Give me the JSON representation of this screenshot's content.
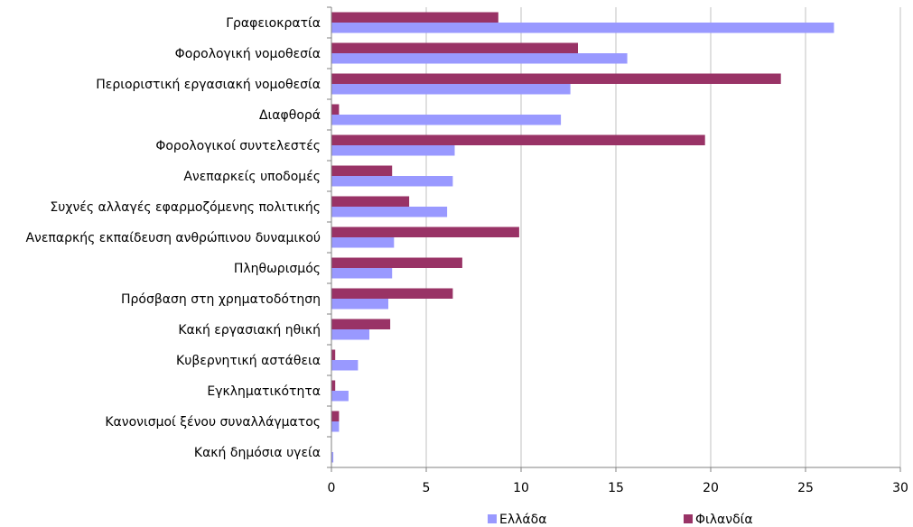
{
  "chart_data": {
    "type": "bar",
    "orientation": "horizontal",
    "categories": [
      "Γραφειοκρατία",
      "Φορολογική νομοθεσία",
      "Περιοριστική εργασιακή νομοθεσία",
      "Διαφθορά",
      "Φορολογικοί συντελεστές",
      "Ανεπαρκείς υποδομές",
      "Συχνές αλλαγές εφαρμοζόμενης πολιτικής",
      "Ανεπαρκής εκπαίδευση ανθρώπινου δυναμικού",
      "Πληθωρισμός",
      "Πρόσβαση στη χρηματοδότηση",
      "Κακή εργασιακή ηθική",
      "Κυβερνητική αστάθεια",
      "Εγκληματικότητα",
      "Κανονισμοί ξένου συναλλάγματος",
      "Κακή δημόσια υγεία"
    ],
    "series": [
      {
        "name": "Ελλάδα",
        "color": "#9999ff",
        "values": [
          26.5,
          15.6,
          12.6,
          12.1,
          6.5,
          6.4,
          6.1,
          3.3,
          3.2,
          3.0,
          2.0,
          1.4,
          0.9,
          0.4,
          0.1
        ]
      },
      {
        "name": "Φιλανδία",
        "color": "#993366",
        "values": [
          8.8,
          13.0,
          23.7,
          0.4,
          19.7,
          3.2,
          4.1,
          9.9,
          6.9,
          6.4,
          3.1,
          0.2,
          0.2,
          0.4,
          0.0
        ]
      }
    ],
    "xlim": [
      0,
      30
    ],
    "xticks": [
      0,
      5,
      10,
      15,
      20,
      25,
      30
    ],
    "grid": "vertical",
    "legend": "bottom"
  }
}
